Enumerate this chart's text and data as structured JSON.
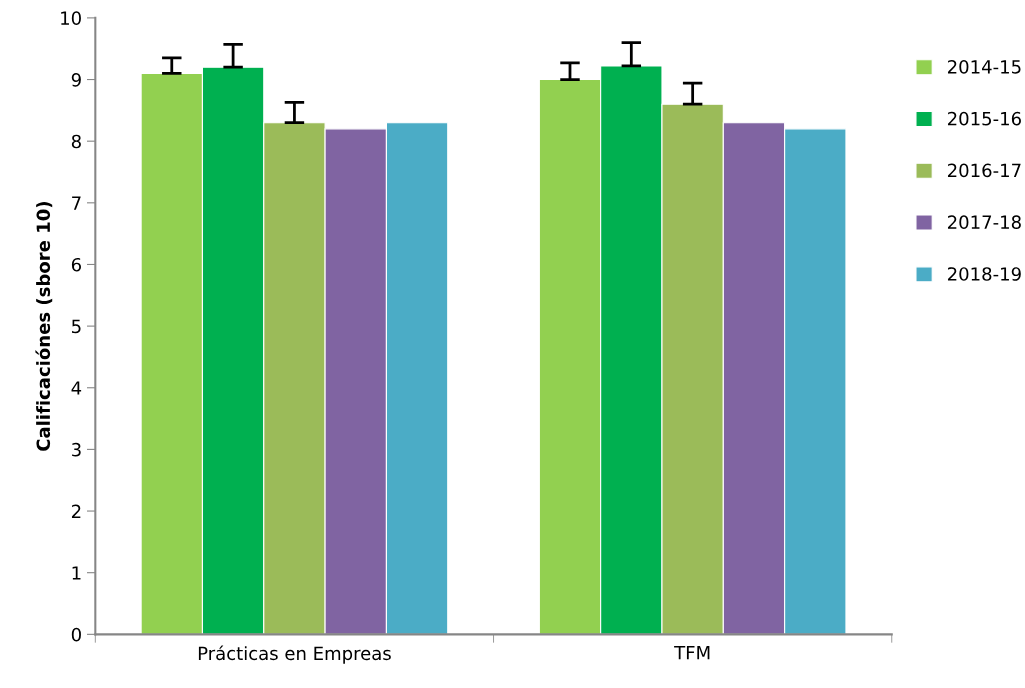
{
  "chart_data": {
    "type": "bar",
    "ylabel": "Calificaciónes (sbore 10)",
    "categories": [
      "Prácticas en Empreas",
      "TFM"
    ],
    "series": [
      {
        "name": "2014-15",
        "color": "#92d050",
        "values": [
          9.1,
          9.0
        ],
        "errors": [
          [
            9.1,
            9.35
          ],
          [
            9.0,
            9.27
          ]
        ]
      },
      {
        "name": "2015-16",
        "color": "#00b050",
        "values": [
          9.2,
          9.22
        ],
        "errors": [
          [
            9.2,
            9.57
          ],
          [
            9.22,
            9.6
          ]
        ]
      },
      {
        "name": "2016-17",
        "color": "#9bbb59",
        "values": [
          8.3,
          8.6
        ],
        "errors": [
          [
            8.3,
            8.63
          ],
          [
            8.6,
            8.94
          ]
        ]
      },
      {
        "name": "2017-18",
        "color": "#8064a2",
        "values": [
          8.2,
          8.3
        ]
      },
      {
        "name": "2018-19",
        "color": "#4bacc6",
        "values": [
          8.3,
          8.2
        ]
      }
    ],
    "ylim": [
      0,
      10
    ],
    "yticks": [
      0,
      1,
      2,
      3,
      4,
      5,
      6,
      7,
      8,
      9,
      10
    ],
    "grid": false,
    "legend": "right"
  }
}
